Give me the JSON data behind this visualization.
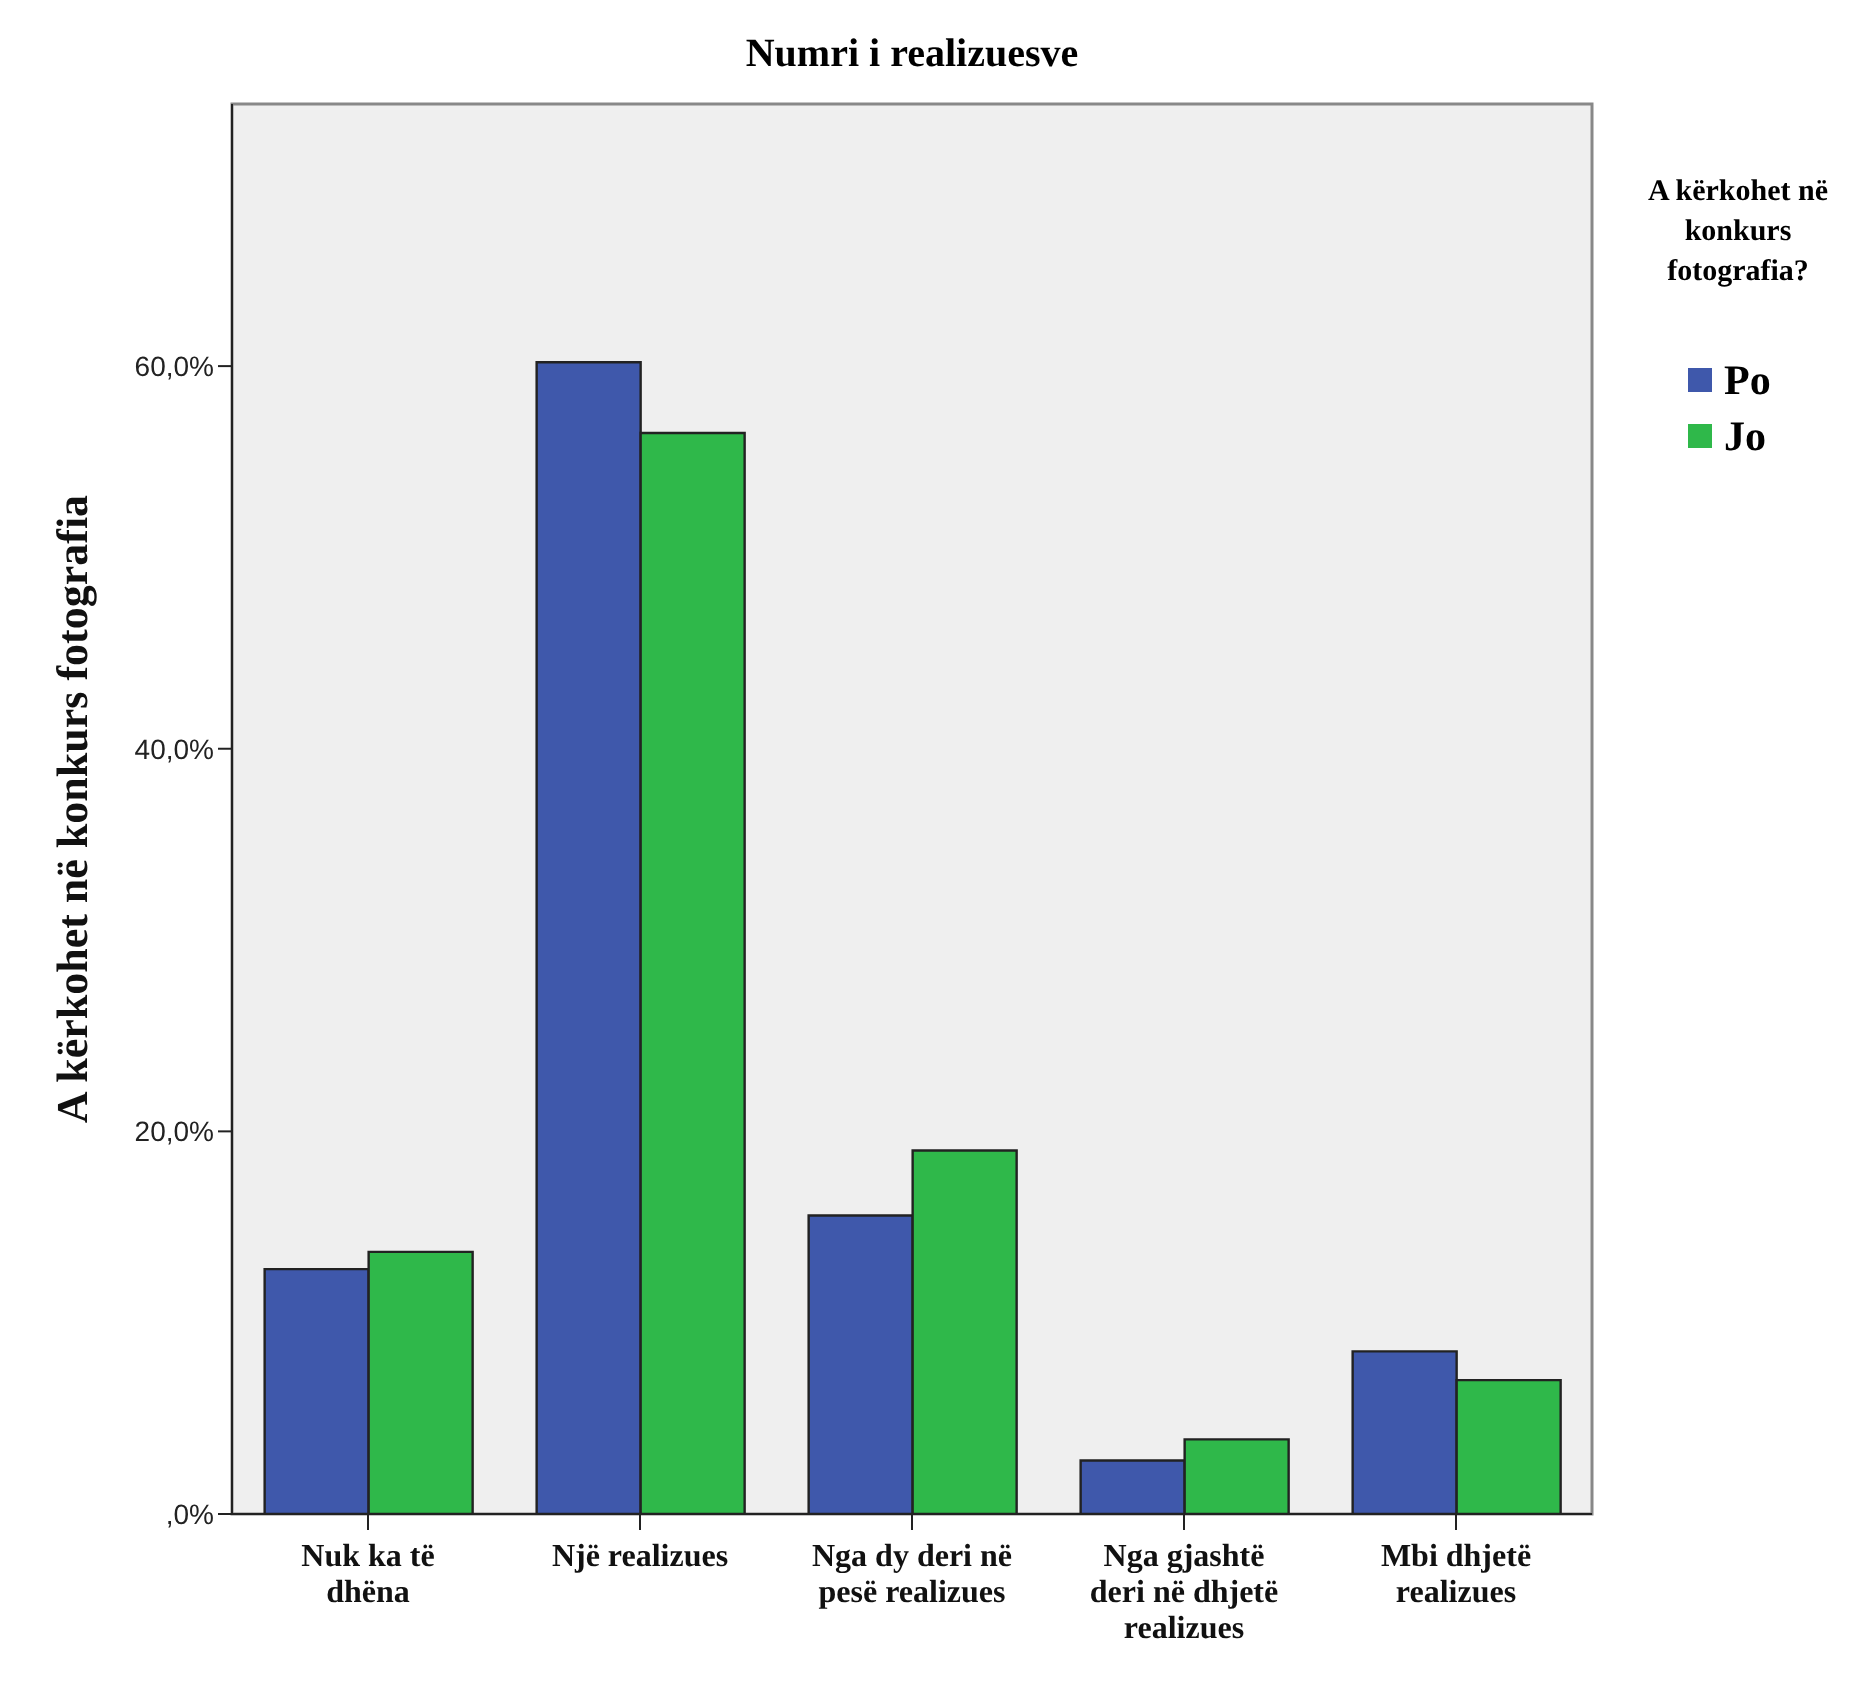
{
  "chart_data": {
    "type": "bar",
    "title": "Numri i realizuesve",
    "ylabel": "A kërkohet në konkurs fotografia",
    "legend_title": "A kërkohet në konkurs fotografia?",
    "legend": "right",
    "categories": [
      "Nuk ka të dhëna",
      "Një realizues",
      "Nga dy deri në pesë realizues",
      "Nga gjashtë deri në dhjetë realizues",
      "Mbi dhjetë realizues"
    ],
    "series": [
      {
        "name": "Po",
        "color": "#3f58ab",
        "values": [
          12.8,
          60.2,
          15.6,
          2.8,
          8.5
        ]
      },
      {
        "name": "Jo",
        "color": "#2fb84a",
        "values": [
          13.7,
          56.5,
          19.0,
          3.9,
          7.0
        ]
      }
    ],
    "ylim": [
      0,
      73.7
    ],
    "yticks": [
      {
        "value": 0,
        "label": ",0%"
      },
      {
        "value": 20,
        "label": "20,0%"
      },
      {
        "value": 40,
        "label": "40,0%"
      },
      {
        "value": 60,
        "label": "60,0%"
      }
    ]
  }
}
